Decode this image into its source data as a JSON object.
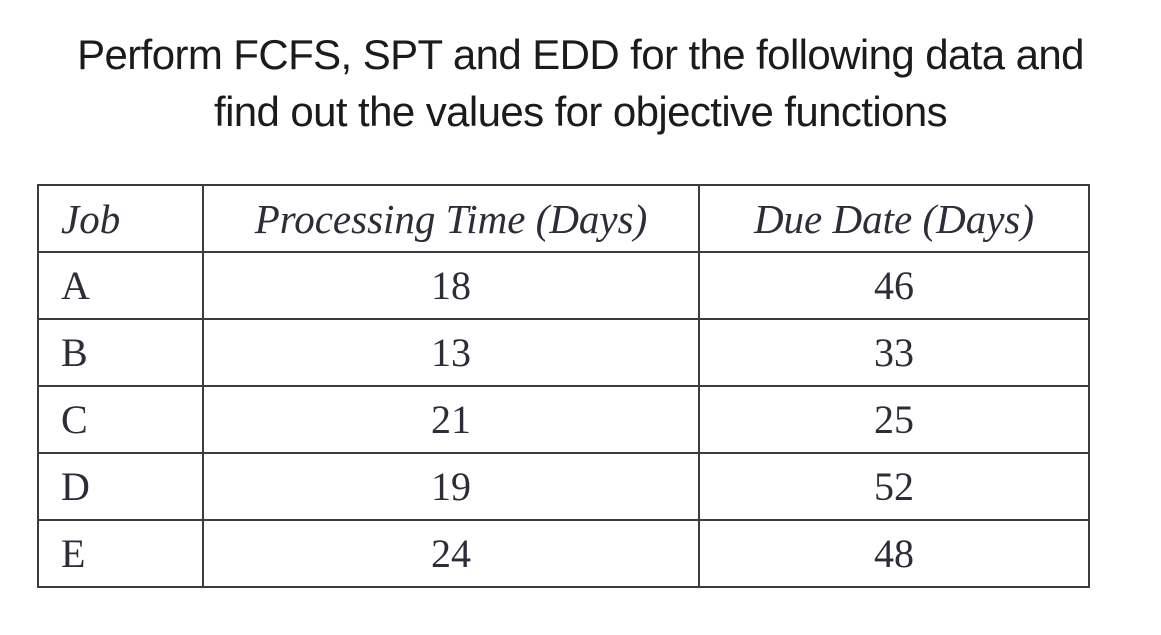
{
  "page": {
    "title_line1": "Perform FCFS, SPT and EDD for the following data and",
    "title_line2": "find out the values for objective functions"
  },
  "table": {
    "columns": [
      "Job",
      "Processing Time (Days)",
      "Due Date (Days)"
    ],
    "rows": [
      {
        "job": "A",
        "processing_time": "18",
        "due_date": "46"
      },
      {
        "job": "B",
        "processing_time": "13",
        "due_date": "33"
      },
      {
        "job": "C",
        "processing_time": "21",
        "due_date": "25"
      },
      {
        "job": "D",
        "processing_time": "19",
        "due_date": "52"
      },
      {
        "job": "E",
        "processing_time": "24",
        "due_date": "48"
      }
    ]
  },
  "colors": {
    "text": "#1b1b1e",
    "table_text": "#2d2d3a",
    "border": "#3c3c40",
    "background": "#ffffff"
  }
}
